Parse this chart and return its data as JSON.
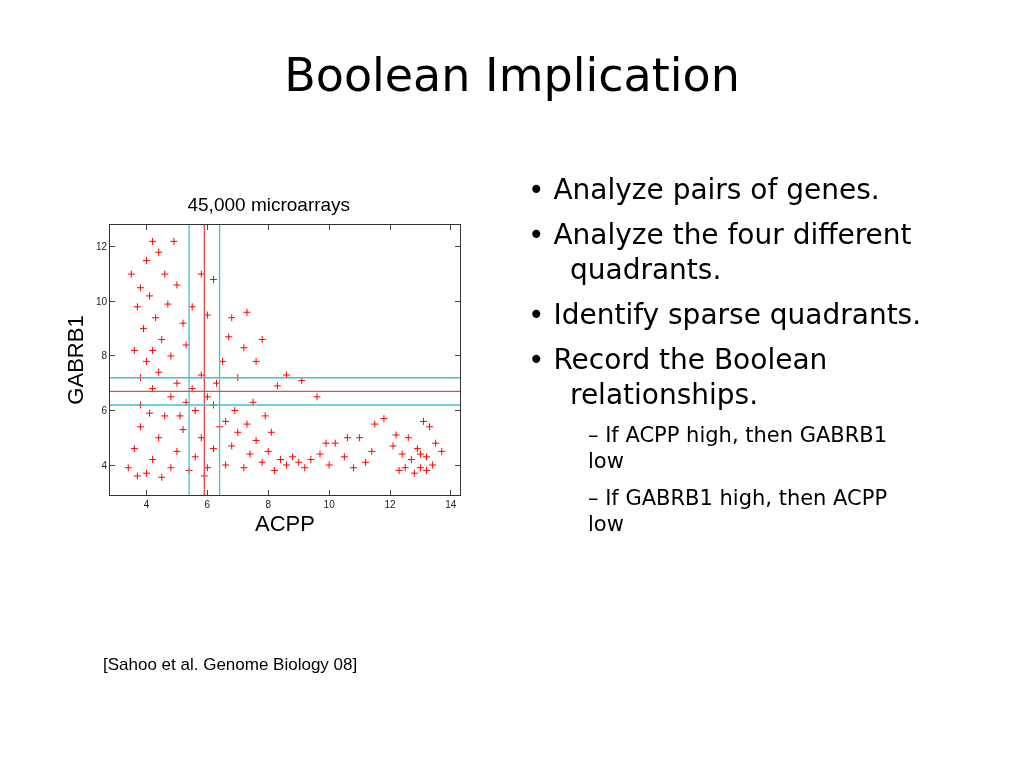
{
  "chart_data": [
    {
      "type": "scatter",
      "title": "45,000 microarrays",
      "xlabel": "ACPP",
      "ylabel": "GABRB1",
      "marker": "cross",
      "grid": false,
      "xlim": [
        2.8,
        14.3
      ],
      "ylim": [
        2.9,
        12.8
      ],
      "xticks": [
        4,
        6,
        8,
        10,
        12,
        14
      ],
      "yticks": [
        4,
        6,
        8,
        10,
        12
      ],
      "series": [
        {
          "color": "#ff0000",
          "x": [
            3.8,
            4.0,
            4.2,
            4.4,
            4.6,
            3.7,
            3.9,
            4.1,
            4.3,
            4.5,
            4.7,
            3.6,
            4.0,
            4.4,
            4.8,
            5.0,
            5.2,
            3.5,
            4.9,
            4.2,
            3.8,
            5.3,
            5.5,
            5.8,
            6.2,
            6.0,
            5.0,
            5.5,
            5.8,
            6.0,
            6.3,
            6.5,
            6.8,
            6.7,
            7.3,
            7.2,
            7.8,
            7.6,
            7.0,
            8.6,
            9.1,
            9.6,
            8.3,
            7.5,
            7.9,
            6.9,
            5.3,
            4.8,
            4.2,
            3.8,
            6.2,
            3.4,
            3.6,
            3.8,
            4.0,
            4.2,
            4.4,
            4.6,
            4.8,
            5.0,
            5.2,
            5.4,
            5.6,
            5.8,
            6.0,
            6.2,
            6.4,
            6.6,
            6.8,
            7.0,
            7.2,
            7.4,
            7.6,
            7.8,
            8.0,
            8.2,
            8.4,
            8.6,
            8.8,
            9.0,
            9.2,
            3.7,
            4.5,
            5.9,
            4.1,
            5.1,
            5.6,
            6.6,
            7.3,
            8.1,
            9.4,
            9.7,
            10.0,
            10.2,
            10.5,
            10.8,
            11.0,
            11.2,
            11.5,
            11.8,
            11.4,
            10.6,
            9.9,
            12.1,
            12.3,
            12.4,
            12.6,
            12.7,
            12.8,
            12.9,
            13.0,
            13.1,
            13.2,
            13.3,
            13.4,
            13.5,
            13.7,
            12.2,
            12.5,
            13.0,
            13.2
          ],
          "values": [
            10.5,
            11.5,
            12.2,
            11.8,
            11.0,
            9.8,
            9.0,
            10.2,
            9.4,
            8.6,
            9.9,
            8.2,
            7.8,
            7.4,
            8.0,
            10.6,
            9.2,
            11.0,
            12.2,
            8.2,
            7.2,
            8.4,
            9.8,
            11.0,
            10.8,
            9.5,
            7.0,
            6.8,
            7.3,
            6.5,
            7.0,
            7.8,
            9.4,
            8.7,
            9.6,
            8.3,
            8.6,
            7.8,
            7.2,
            7.3,
            7.1,
            6.5,
            6.9,
            6.3,
            5.8,
            6.0,
            6.3,
            6.5,
            6.8,
            6.2,
            6.2,
            3.9,
            4.6,
            5.4,
            3.7,
            4.2,
            5.0,
            5.8,
            3.9,
            4.5,
            5.3,
            3.8,
            4.3,
            5.0,
            3.9,
            4.6,
            5.4,
            4.0,
            4.7,
            5.2,
            3.9,
            4.4,
            4.9,
            4.1,
            4.5,
            3.8,
            4.2,
            4.0,
            4.3,
            4.1,
            3.9,
            3.6,
            3.55,
            3.6,
            5.9,
            5.8,
            6.0,
            5.6,
            5.5,
            5.2,
            4.2,
            4.4,
            4.0,
            4.8,
            4.3,
            3.9,
            5.0,
            4.1,
            5.5,
            5.7,
            4.5,
            5.0,
            4.8,
            4.7,
            3.8,
            4.4,
            5.0,
            4.2,
            3.7,
            4.6,
            3.9,
            5.6,
            4.3,
            5.4,
            4.0,
            4.8,
            4.5,
            5.1,
            3.9,
            4.4,
            3.8
          ]
        }
      ],
      "ref_lines": [
        {
          "axis": "x",
          "value": 5.4,
          "color": "#40c4cc"
        },
        {
          "axis": "x",
          "value": 5.9,
          "color": "#e84a4a"
        },
        {
          "axis": "x",
          "value": 6.4,
          "color": "#40c4cc"
        },
        {
          "axis": "y",
          "value": 6.2,
          "color": "#40c4cc"
        },
        {
          "axis": "y",
          "value": 6.7,
          "color": "#e84a4a"
        },
        {
          "axis": "y",
          "value": 7.2,
          "color": "#40c4cc"
        }
      ],
      "annotations": [
        "[Sahoo et al.  Genome Biology 08]"
      ]
    },
    {
      "type": "other",
      "title": "Boolean Implication",
      "annotations": [
        "• Analyze pairs of genes.",
        "• Analyze the four different quadrants.",
        "• Identify sparse quadrants.",
        "• Record the Boolean relationships.",
        "– If ACPP high, then GABRB1 low",
        "– If GABRB1 high, then ACPP low"
      ]
    }
  ]
}
